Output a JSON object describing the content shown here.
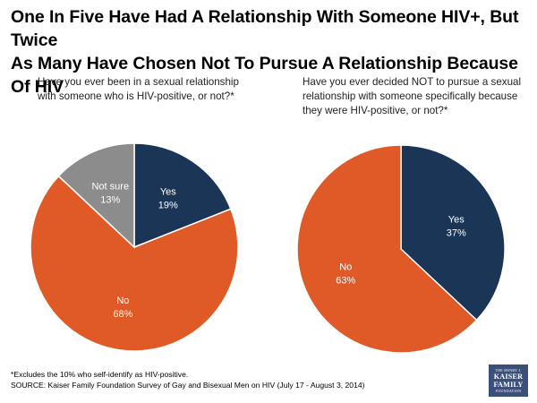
{
  "title_line1": "One In Five Have Had A Relationship With Someone HIV+, But Twice",
  "title_line2": "As Many Have Chosen Not To Pursue A Relationship Because Of HIV",
  "colors": {
    "yes": "#1b3557",
    "no": "#df5a26",
    "not_sure": "#8c8c8c",
    "stroke": "#ffffff",
    "logo_bg": "#3a4f7a"
  },
  "chart_data": [
    {
      "type": "pie",
      "question": "Have you ever been in a sexual relationship with someone who is HIV-positive, or not?*",
      "slices": [
        {
          "label": "Yes",
          "value": 19,
          "value_text": "19%",
          "color_key": "yes"
        },
        {
          "label": "No",
          "value": 68,
          "value_text": "68%",
          "color_key": "no"
        },
        {
          "label": "Not sure",
          "value": 13,
          "value_text": "13%",
          "color_key": "not_sure"
        }
      ]
    },
    {
      "type": "pie",
      "question": "Have you ever decided NOT to pursue a sexual relationship with someone specifically because they were HIV-positive, or not?*",
      "slices": [
        {
          "label": "Yes",
          "value": 37,
          "value_text": "37%",
          "color_key": "yes"
        },
        {
          "label": "No",
          "value": 63,
          "value_text": "63%",
          "color_key": "no"
        }
      ]
    }
  ],
  "footnote": "*Excludes the 10% who self-identify as HIV-positive.",
  "source": "SOURCE: Kaiser Family Foundation Survey of Gay and Bisexual Men on HIV (July 17 - August 3, 2014)",
  "logo": {
    "line1": "THE HENRY J.",
    "line2": "KAISER",
    "line3": "FAMILY",
    "line4": "FOUNDATION"
  }
}
